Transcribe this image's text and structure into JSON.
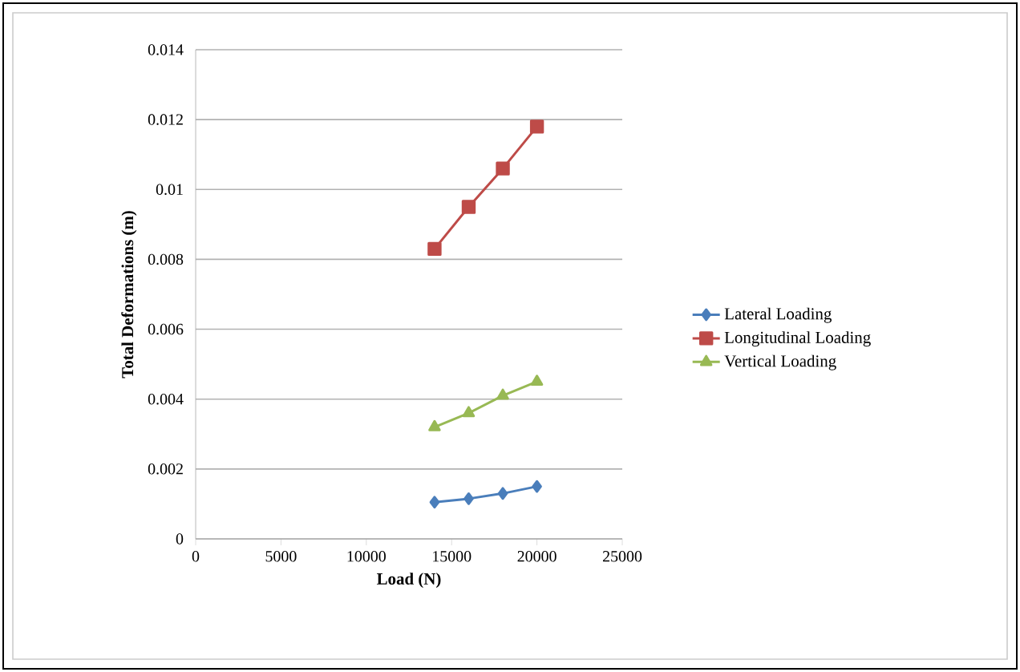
{
  "chart_data": {
    "type": "line",
    "xlabel": "Load  (N)",
    "ylabel": "Total Deformations (m)",
    "x": [
      14000,
      16000,
      18000,
      20000
    ],
    "series": [
      {
        "name": "Lateral Loading",
        "color": "#4a7ebb",
        "marker": "diamond",
        "values": [
          0.00105,
          0.00115,
          0.0013,
          0.0015
        ]
      },
      {
        "name": "Longitudinal Loading",
        "color": "#be4b48",
        "marker": "square",
        "values": [
          0.0083,
          0.0095,
          0.0106,
          0.0118
        ]
      },
      {
        "name": "Vertical Loading",
        "color": "#98b954",
        "marker": "triangle",
        "values": [
          0.0032,
          0.0036,
          0.0041,
          0.0045
        ]
      }
    ],
    "xlim": [
      0,
      25000
    ],
    "xticks": [
      0,
      5000,
      10000,
      15000,
      20000,
      25000
    ],
    "ylim": [
      0,
      0.014
    ],
    "yticks": [
      0,
      0.002,
      0.004,
      0.006,
      0.008,
      0.01,
      0.012,
      0.014
    ],
    "grid": "y",
    "legend": "right",
    "line_style": "solid"
  }
}
